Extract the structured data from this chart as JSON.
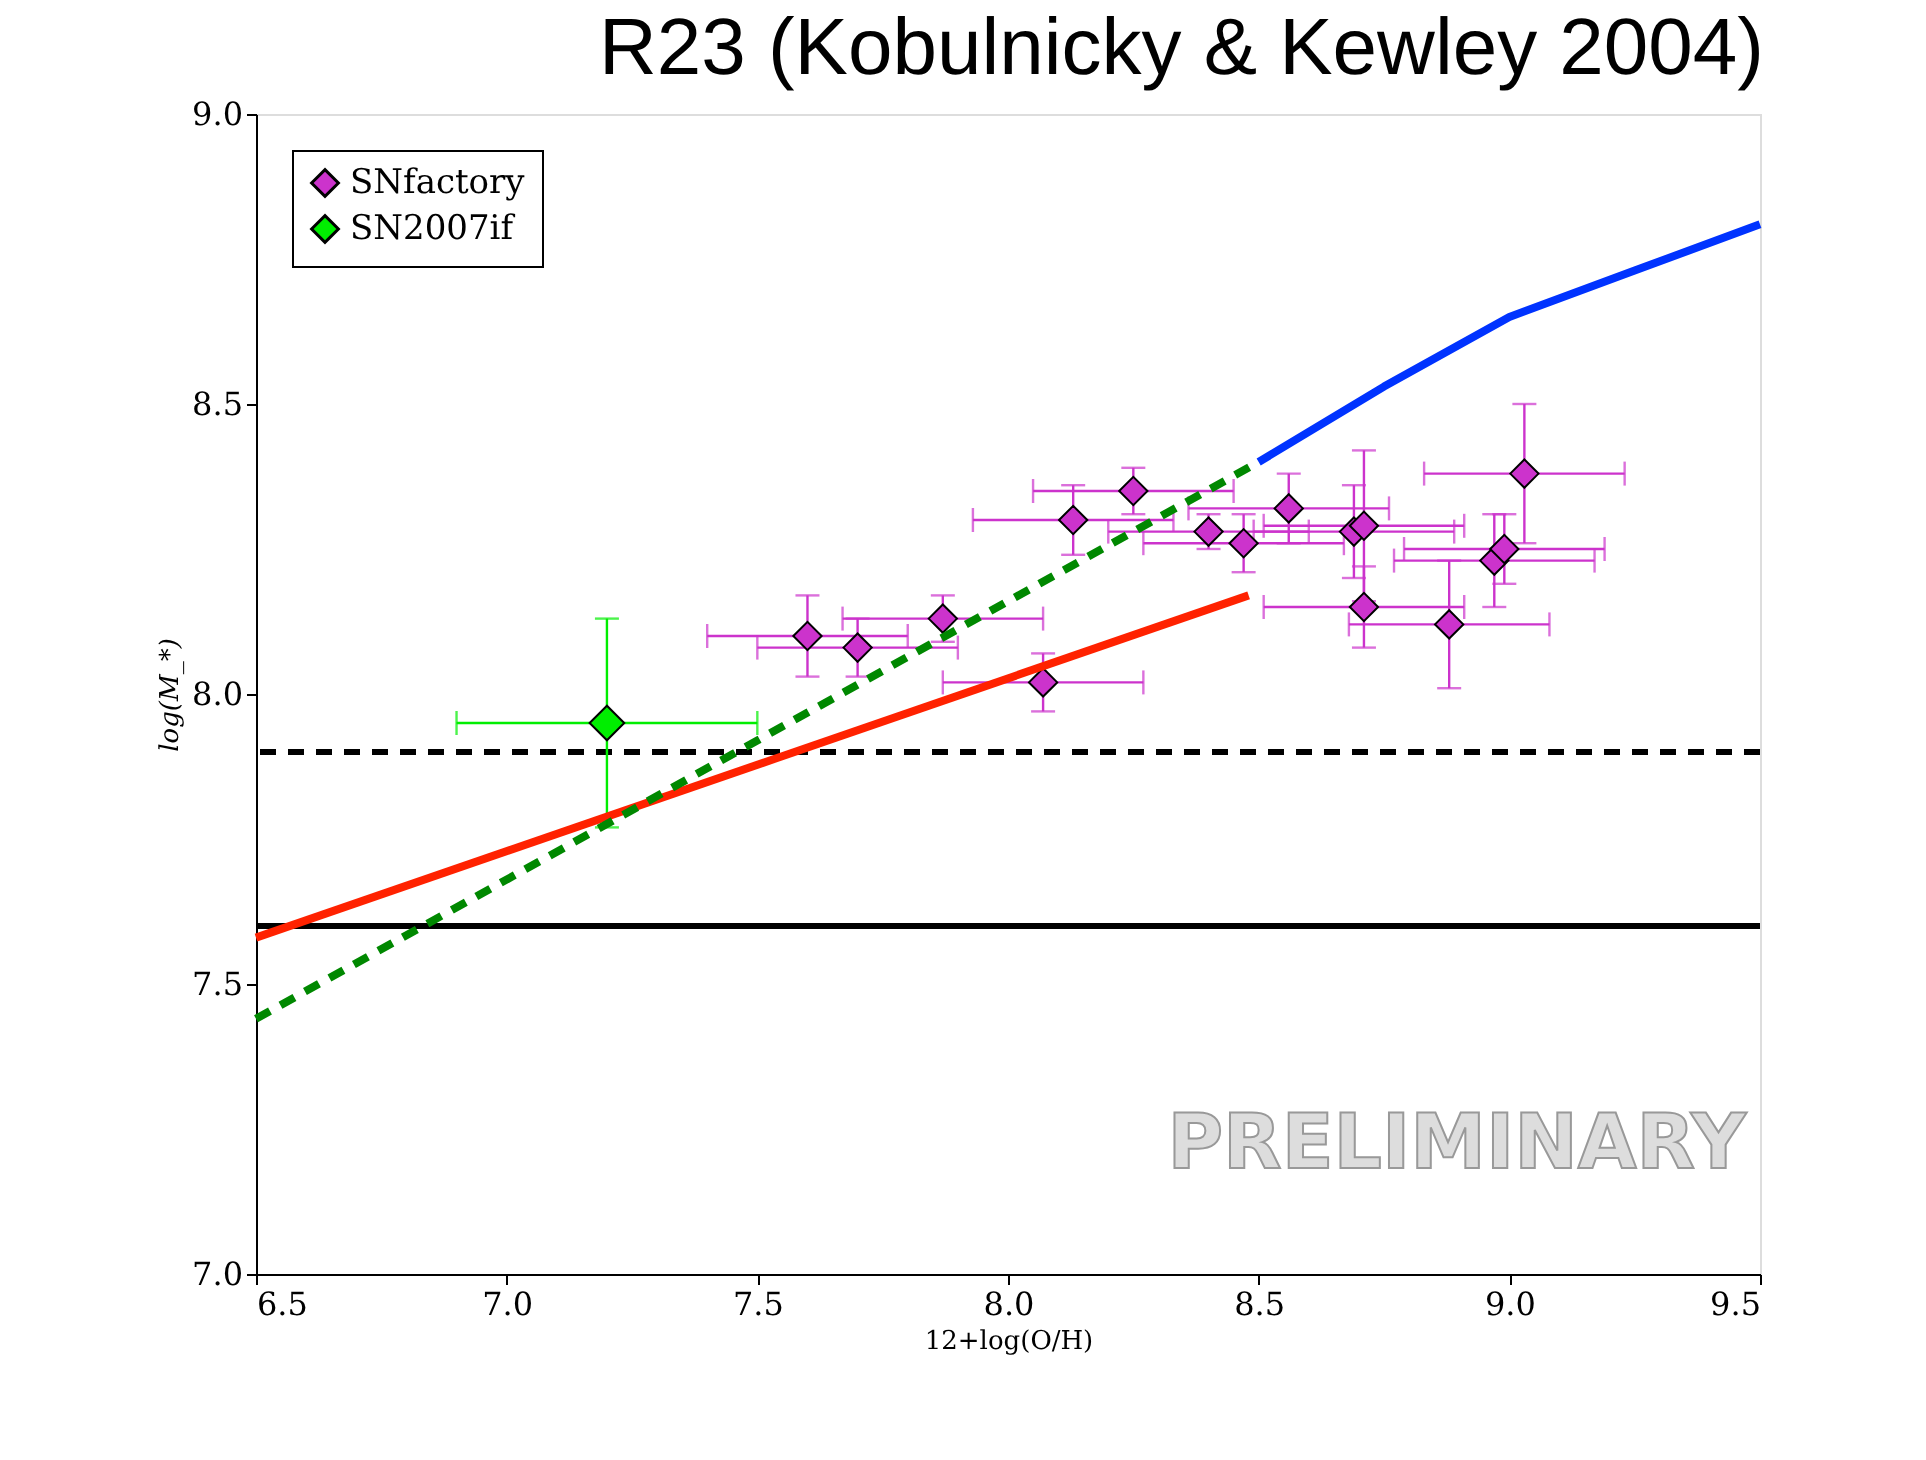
{
  "chart_data": {
    "type": "scatter",
    "title": "R23 (Kobulnicky & Kewley 2004)",
    "xlabel": "12+log(O/H)",
    "ylabel": "log(M_*)",
    "xlim": [
      6.5,
      9.5
    ],
    "xticks": [
      6.5,
      {
        "value": 7,
        "label": "7.0"
      },
      7.5,
      {
        "value": 8,
        "label": "8.0"
      },
      8.5,
      {
        "value": 9,
        "label": "9.0"
      },
      9.5
    ],
    "ylim": [
      7.0,
      9.0
    ],
    "yticks": [
      {
        "value": 7,
        "label": "7.0"
      },
      7.5,
      {
        "value": 8,
        "label": "8.0"
      },
      8.5,
      {
        "value": 9,
        "label": "9.0"
      }
    ],
    "grid": false,
    "legend": "top left",
    "marker": "diamond",
    "series": [
      {
        "name": "SNfactory",
        "color": "#cc33cc",
        "x": [
          7.6,
          7.7,
          7.87,
          8.07,
          8.13,
          8.25,
          8.4,
          8.47,
          8.56,
          8.69,
          8.71,
          8.71,
          8.88,
          8.97,
          8.99,
          9.03
        ],
        "values": [
          8.1,
          8.08,
          8.13,
          8.02,
          8.3,
          8.35,
          8.28,
          8.26,
          8.32,
          8.28,
          8.29,
          8.15,
          8.12,
          8.23,
          8.25,
          8.38
        ],
        "errors": [
          0.07,
          0.05,
          0.04,
          0.05,
          0.06,
          0.04,
          0.03,
          0.05,
          0.06,
          0.08,
          0.13,
          0.07,
          0.11,
          0.08,
          0.06,
          0.12
        ],
        "xerrors": [
          0.2,
          0.2,
          0.2,
          0.2,
          0.2,
          0.2,
          0.2,
          0.2,
          0.2,
          0.2,
          0.2,
          0.2,
          0.2,
          0.2,
          0.2,
          0.2
        ]
      },
      {
        "name": "SN2007if",
        "color": "#00ee00",
        "x": [
          7.2
        ],
        "values": [
          7.95
        ],
        "errors": [
          0.18
        ],
        "xerrors": [
          0.3
        ]
      },
      {
        "type": "line",
        "marker": "none",
        "color": "#ff2200",
        "line_style": "solid",
        "x": [
          6.5,
          8.48
        ],
        "values": [
          7.58,
          8.17
        ]
      },
      {
        "type": "line",
        "marker": "none",
        "color": "#008800",
        "line_style": "dashed",
        "x": [
          6.5,
          8.5
        ],
        "values": [
          7.44,
          8.4
        ]
      },
      {
        "type": "line",
        "marker": "none",
        "color": "#0033ff",
        "line_style": "solid",
        "x": [
          8.5,
          8.75,
          9.0,
          9.25,
          9.5
        ],
        "values": [
          8.4,
          8.53,
          8.65,
          8.73,
          8.81
        ]
      }
    ],
    "ref_lines": [
      {
        "axis": "y",
        "value": 7.9,
        "color": "#000000",
        "line_style": "dashed"
      },
      {
        "axis": "y",
        "value": 7.6,
        "color": "#000000",
        "line_style": "solid"
      }
    ],
    "annotations": [
      "PRELIMINARY"
    ]
  }
}
